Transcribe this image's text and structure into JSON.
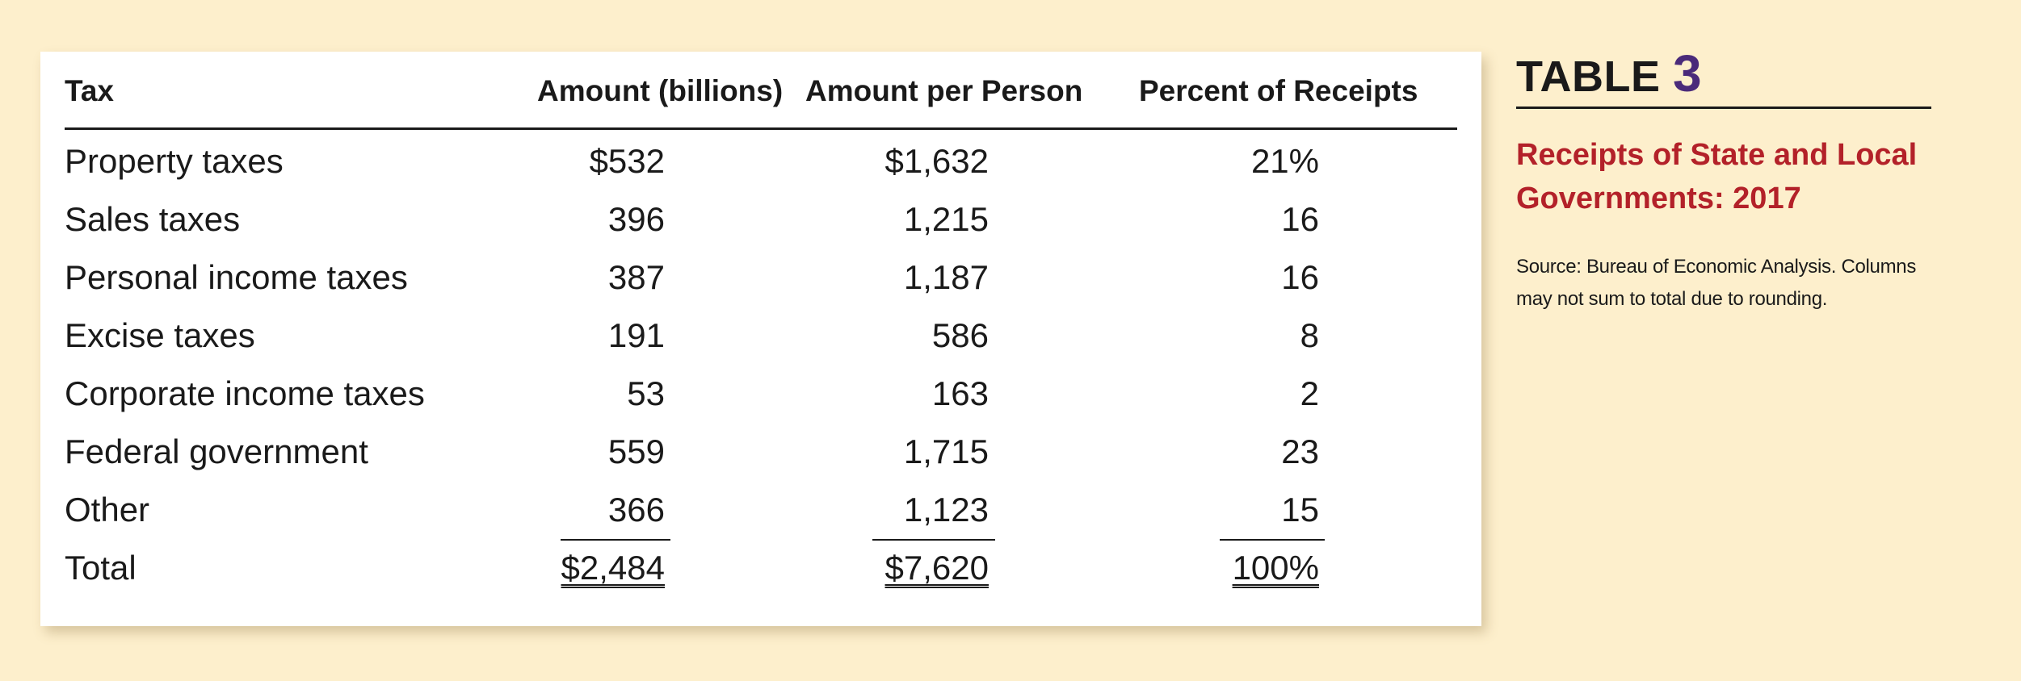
{
  "table": {
    "headers": {
      "tax": "Tax",
      "amount": "Amount (billions)",
      "per_person": "Amount per Person",
      "percent": "Percent of Receipts"
    },
    "rows": [
      {
        "tax": "Property taxes",
        "amount": "$532",
        "per_person": "$1,632",
        "percent": "21%"
      },
      {
        "tax": "Sales taxes",
        "amount": "396",
        "per_person": "1,215",
        "percent": "16"
      },
      {
        "tax": "Personal income taxes",
        "amount": "387",
        "per_person": "1,187",
        "percent": "16"
      },
      {
        "tax": "Excise taxes",
        "amount": "191",
        "per_person": "586",
        "percent": "8"
      },
      {
        "tax": "Corporate income taxes",
        "amount": "53",
        "per_person": "163",
        "percent": "2"
      },
      {
        "tax": "Federal government",
        "amount": "559",
        "per_person": "1,715",
        "percent": "23"
      },
      {
        "tax": "Other",
        "amount": "366",
        "per_person": "1,123",
        "percent": "15"
      }
    ],
    "total": {
      "tax": "Total",
      "amount": "$2,484",
      "per_person": "$7,620",
      "percent": "100%"
    }
  },
  "sidebar": {
    "title_word": "TABLE",
    "title_number": "3",
    "subtitle": "Receipts of State and Local Governments: 2017",
    "source": "Source: Bureau of Economic Analysis. Columns may not sum to total due to rounding."
  },
  "colors": {
    "background": "#fdefcc",
    "subtitle": "#b32129",
    "table_number": "#4a2a7a"
  }
}
